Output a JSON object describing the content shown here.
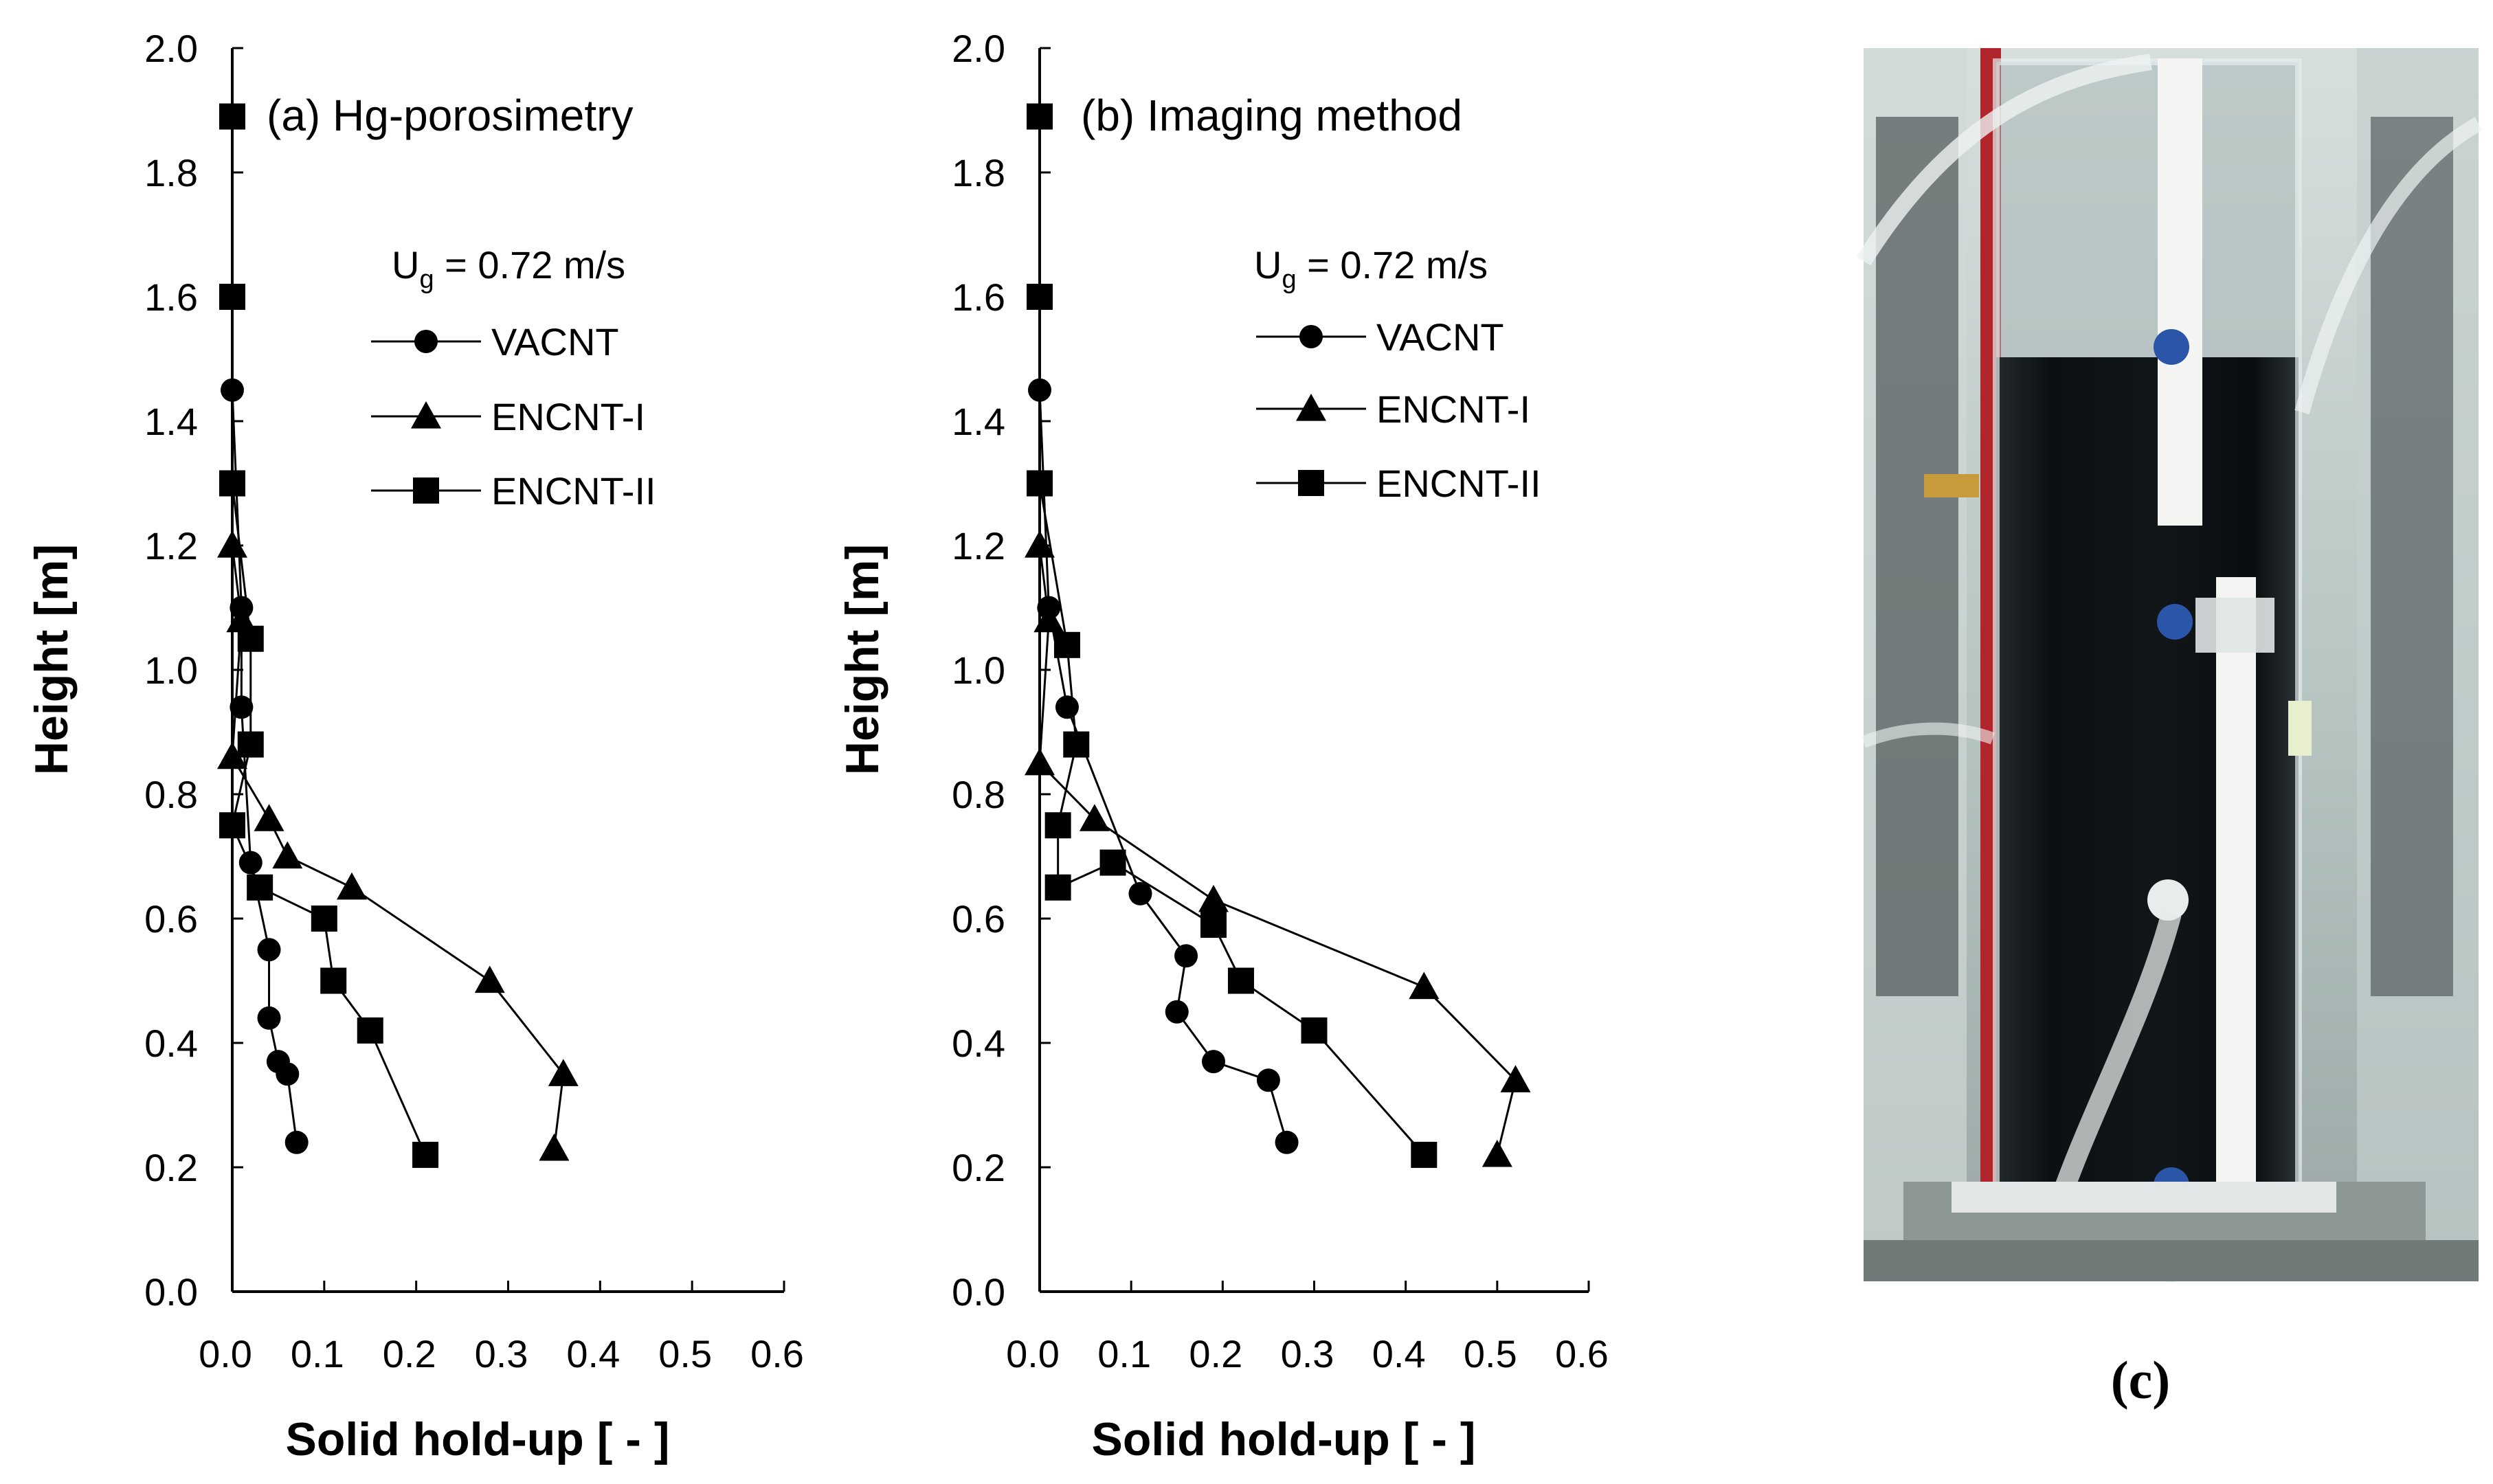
{
  "chart_data": [
    {
      "type": "line",
      "panel_label": "(a) Hg-porosimetry",
      "xlabel": "Solid hold-up [ - ]",
      "ylabel": "Height [m]",
      "xlim": [
        0.0,
        0.6
      ],
      "ylim": [
        0.0,
        2.0
      ],
      "xticks": [
        "0.0",
        "0.1",
        "0.2",
        "0.3",
        "0.4",
        "0.5",
        "0.6"
      ],
      "yticks": [
        "0.0",
        "0.2",
        "0.4",
        "0.6",
        "0.8",
        "1.0",
        "1.2",
        "1.4",
        "1.6",
        "1.8",
        "2.0"
      ],
      "legend_title": "Ug = 0.72 m/s",
      "legend_position": "right",
      "grid": false,
      "series": [
        {
          "name": "VACNT",
          "marker": "circle",
          "x": [
            0.07,
            0.06,
            0.05,
            0.04,
            0.04,
            0.02,
            0.01,
            0.01,
            0.0
          ],
          "y": [
            0.24,
            0.35,
            0.37,
            0.44,
            0.55,
            0.69,
            0.94,
            1.1,
            1.45
          ]
        },
        {
          "name": "ENCNT-I",
          "marker": "triangle",
          "x": [
            0.35,
            0.36,
            0.28,
            0.13,
            0.06,
            0.04,
            0.0,
            0.01,
            0.0
          ],
          "y": [
            0.23,
            0.35,
            0.5,
            0.65,
            0.7,
            0.76,
            0.86,
            1.08,
            1.2
          ]
        },
        {
          "name": "ENCNT-II",
          "marker": "square",
          "x": [
            0.21,
            0.15,
            0.11,
            0.1,
            0.03,
            0.0,
            0.02,
            0.02,
            0.0,
            0.0,
            0.0
          ],
          "y": [
            0.22,
            0.42,
            0.5,
            0.6,
            0.65,
            0.75,
            0.88,
            1.05,
            1.3,
            1.6,
            1.89
          ]
        }
      ]
    },
    {
      "type": "line",
      "panel_label": "(b) Imaging method",
      "xlabel": "Solid hold-up [ - ]",
      "ylabel": "Height [m]",
      "xlim": [
        0.0,
        0.6
      ],
      "ylim": [
        0.0,
        2.0
      ],
      "xticks": [
        "0.0",
        "0.1",
        "0.2",
        "0.3",
        "0.4",
        "0.5",
        "0.6"
      ],
      "yticks": [
        "0.0",
        "0.2",
        "0.4",
        "0.6",
        "0.8",
        "1.0",
        "1.2",
        "1.4",
        "1.6",
        "1.8",
        "2.0"
      ],
      "legend_title": "Ug = 0.72 m/s",
      "legend_position": "right",
      "grid": false,
      "series": [
        {
          "name": "VACNT",
          "marker": "circle",
          "x": [
            0.27,
            0.25,
            0.19,
            0.15,
            0.16,
            0.11,
            0.03,
            0.01,
            0.0
          ],
          "y": [
            0.24,
            0.34,
            0.37,
            0.45,
            0.54,
            0.64,
            0.94,
            1.1,
            1.45
          ]
        },
        {
          "name": "ENCNT-I",
          "marker": "triangle",
          "x": [
            0.5,
            0.52,
            0.42,
            0.19,
            0.06,
            0.0,
            0.01,
            0.0
          ],
          "y": [
            0.22,
            0.34,
            0.49,
            0.63,
            0.76,
            0.85,
            1.08,
            1.2
          ]
        },
        {
          "name": "ENCNT-II",
          "marker": "square",
          "x": [
            0.42,
            0.3,
            0.22,
            0.19,
            0.08,
            0.02,
            0.02,
            0.04,
            0.03,
            0.0,
            0.0,
            0.0
          ],
          "y": [
            0.22,
            0.42,
            0.5,
            0.59,
            0.69,
            0.65,
            0.75,
            0.88,
            1.04,
            1.3,
            1.6,
            1.89
          ]
        }
      ]
    }
  ],
  "subscript_g": "g",
  "legend_prefix": "U",
  "legend_suffix": " = 0.72 m/s",
  "photo": {
    "caption": "(c)",
    "colors": {
      "column_liquid": "#0d1113",
      "background": "#b9c7c6",
      "red_rod": "#b0262c",
      "fitting_blue": "#2a55a8",
      "brass": "#c79a3c"
    }
  }
}
